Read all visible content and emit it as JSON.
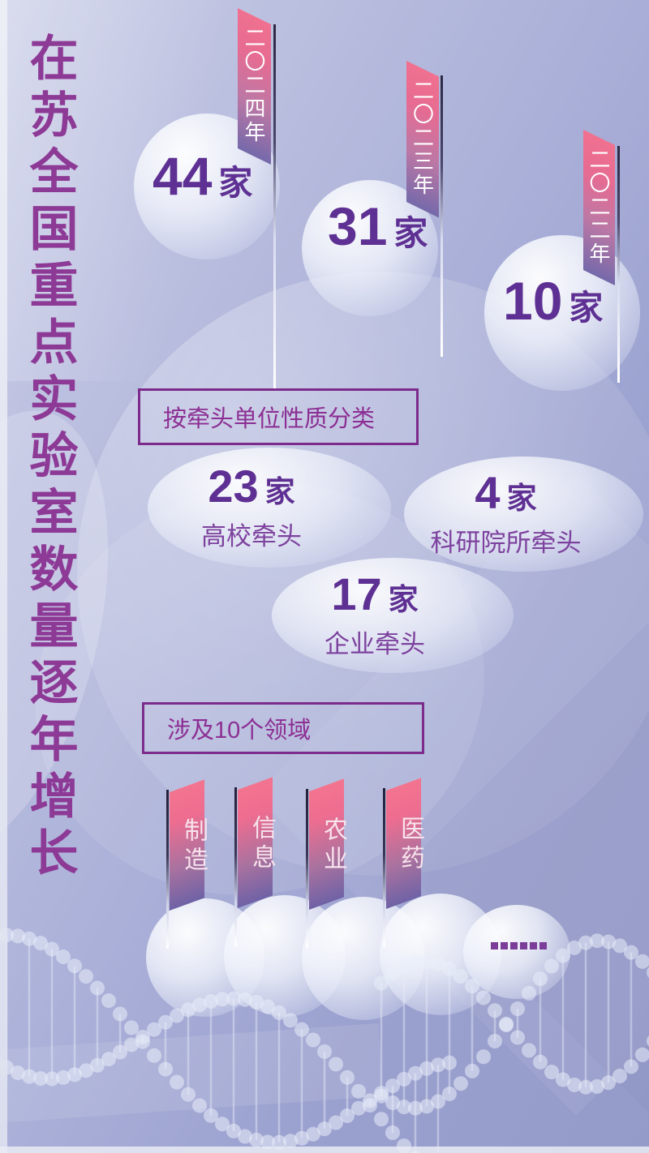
{
  "poster": {
    "title": "在苏全国重点实验室数量逐年增长"
  },
  "years": [
    {
      "label": "二〇二四年",
      "count": "44",
      "unit": "家"
    },
    {
      "label": "二〇二三年",
      "count": "31",
      "unit": "家"
    },
    {
      "label": "二〇二二年",
      "count": "10",
      "unit": "家"
    }
  ],
  "classification": {
    "box_label": "按牵头单位性质分类",
    "items": [
      {
        "count": "23",
        "unit": "家",
        "label": "高校牵头"
      },
      {
        "count": "4",
        "unit": "家",
        "label": "科研院所牵头"
      },
      {
        "count": "17",
        "unit": "家",
        "label": "企业牵头"
      }
    ]
  },
  "fields": {
    "box_label": "涉及10个领域",
    "flags": [
      {
        "label": "制造"
      },
      {
        "label": "信息"
      },
      {
        "label": "农业"
      },
      {
        "label": "医药"
      }
    ],
    "more_indicator": "······"
  },
  "colors": {
    "title": "#8d3a97",
    "number": "#5e3093",
    "box_border": "#7c2b8c",
    "box_text": "#8c2f94",
    "sub_label": "#7d429e",
    "ribbon_pink": "#f0718f",
    "ribbon_purple": "#7569aa",
    "background_light": "#cdd1e8",
    "background_dark": "#959bc9",
    "dots": "#7a3e99"
  },
  "chart_data": {
    "type": "bar",
    "title": "在苏全国重点实验室数量逐年增长",
    "categories": [
      "二〇二二年",
      "二〇二三年",
      "二〇二四年"
    ],
    "values": [
      10,
      31,
      44
    ],
    "unit": "家",
    "legend_position": "none",
    "grid": false,
    "breakdown_by_lead_unit": {
      "label": "按牵头单位性质分类",
      "items": [
        {
          "name": "高校牵头",
          "value": 23
        },
        {
          "name": "科研院所牵头",
          "value": 4
        },
        {
          "name": "企业牵头",
          "value": 17
        }
      ]
    },
    "fields_covered": {
      "label": "涉及10个领域",
      "total": 10,
      "named": [
        "制造",
        "信息",
        "农业",
        "医药"
      ],
      "has_more": true
    }
  }
}
